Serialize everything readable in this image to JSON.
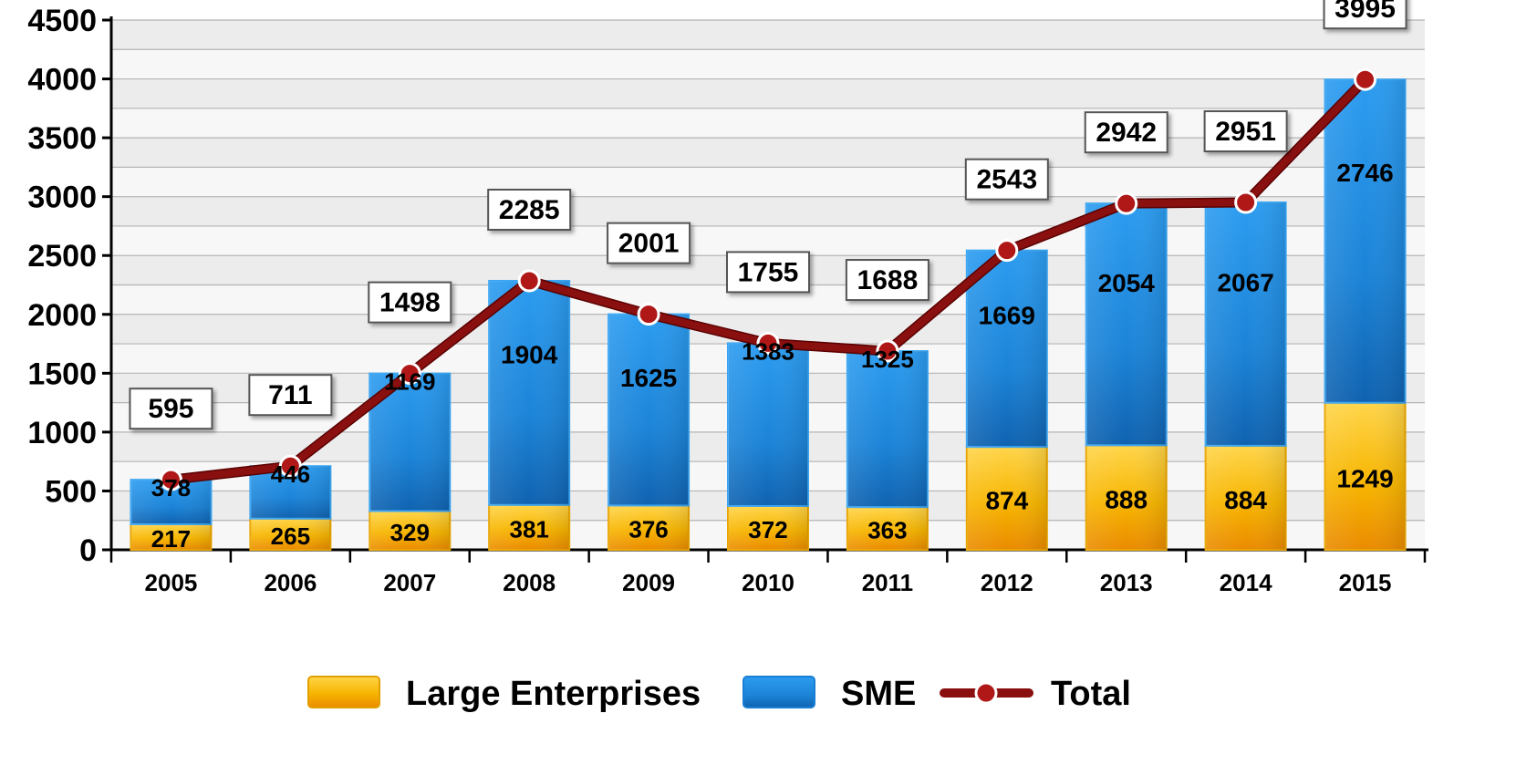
{
  "chart_data": {
    "type": "bar",
    "stacked": true,
    "categories": [
      "2005",
      "2006",
      "2007",
      "2008",
      "2009",
      "2010",
      "2011",
      "2012",
      "2013",
      "2014",
      "2015"
    ],
    "series": [
      {
        "name": "Large Enterprises",
        "kind": "bar",
        "color": "#f5b300",
        "values": [
          217,
          265,
          329,
          381,
          376,
          372,
          363,
          874,
          888,
          884,
          1249
        ]
      },
      {
        "name": "SME",
        "kind": "bar",
        "color": "#1f8de0",
        "values": [
          378,
          446,
          1169,
          1904,
          1625,
          1383,
          1325,
          1669,
          2054,
          2067,
          2746
        ]
      },
      {
        "name": "Total",
        "kind": "line",
        "color": "#7a0a0a",
        "values": [
          595,
          711,
          1498,
          2285,
          2001,
          1755,
          1688,
          2543,
          2942,
          2951,
          3995
        ]
      }
    ],
    "ylim": [
      0,
      4500
    ],
    "yticks": [
      "0",
      "500",
      "1000",
      "1500",
      "2000",
      "2500",
      "3000",
      "3500",
      "4000",
      "4500"
    ],
    "grid": true,
    "legend_position": "bottom"
  }
}
